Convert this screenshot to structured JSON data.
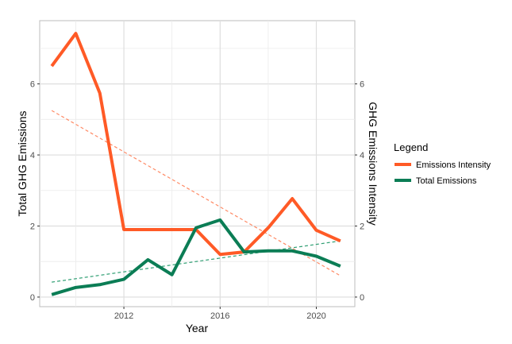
{
  "chart_data": {
    "type": "line",
    "title": "",
    "xlabel": "Year",
    "ylabel": "Total GHG Emissions",
    "ylabel_right": "GHG Emissions Intensity",
    "x": [
      2009,
      2010,
      2011,
      2012,
      2013,
      2014,
      2015,
      2016,
      2017,
      2018,
      2019,
      2020,
      2021
    ],
    "xticks": [
      "2012",
      "2016",
      "2020"
    ],
    "yticks": [
      "0",
      "2",
      "4",
      "6"
    ],
    "yticks_right": [
      "0",
      "2",
      "4",
      "6"
    ],
    "xlim": [
      2008.5,
      2021.6
    ],
    "ylim": [
      -0.27,
      7.78
    ],
    "grid": true,
    "legend": {
      "title": "Legend",
      "placement": "right",
      "entries": [
        "Emissions Intensity",
        "Total Emissions"
      ]
    },
    "series": [
      {
        "name": "Emissions Intensity",
        "color": "#FF5A26",
        "values": [
          6.5,
          7.42,
          5.74,
          1.9,
          1.9,
          1.9,
          1.9,
          1.2,
          1.27,
          1.95,
          2.77,
          1.88,
          1.58
        ]
      },
      {
        "name": "Total Emissions",
        "color": "#0B7D55",
        "values": [
          0.07,
          0.27,
          0.35,
          0.5,
          1.05,
          0.63,
          1.95,
          2.17,
          1.27,
          1.3,
          1.3,
          1.15,
          0.87
        ]
      }
    ],
    "trendlines": [
      {
        "name": "Emissions Intensity trend",
        "color": "#FF8A65",
        "x": [
          2009,
          2021
        ],
        "values": [
          5.25,
          0.6
        ]
      },
      {
        "name": "Total Emissions trend",
        "color": "#2E9E72",
        "x": [
          2009,
          2021
        ],
        "values": [
          0.42,
          1.58
        ]
      }
    ]
  }
}
